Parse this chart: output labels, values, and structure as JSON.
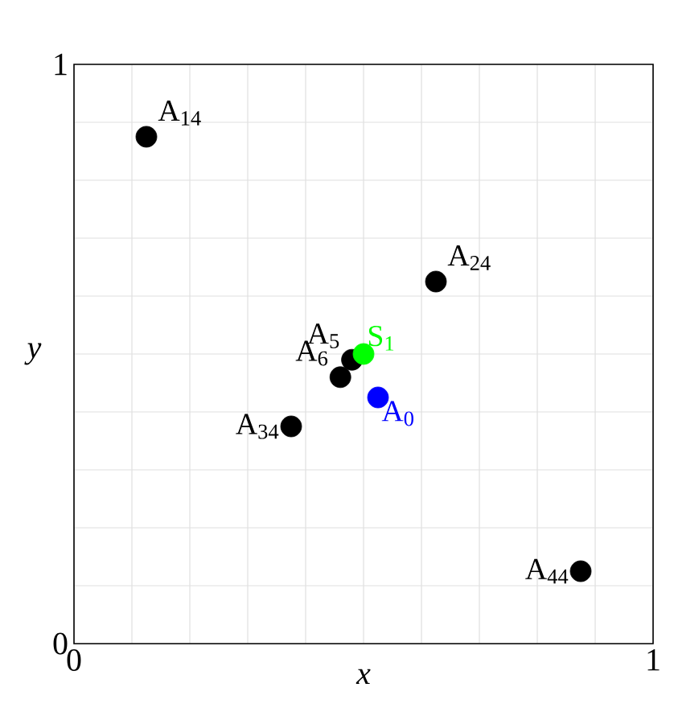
{
  "chart_data": {
    "type": "scatter",
    "xlabel": "x",
    "ylabel": "y",
    "xlim": [
      0,
      1
    ],
    "ylim": [
      0,
      1
    ],
    "xticks": [
      0,
      {
        "value": 0.1,
        "label": null
      },
      {
        "value": 0.2,
        "label": null
      },
      {
        "value": 0.3,
        "label": null
      },
      {
        "value": 0.4,
        "label": null
      },
      {
        "value": 0.5,
        "label": null
      },
      {
        "value": 0.6,
        "label": null
      },
      {
        "value": 0.7,
        "label": null
      },
      {
        "value": 0.8,
        "label": null
      },
      {
        "value": 0.9,
        "label": null
      },
      1
    ],
    "yticks": [
      0,
      {
        "value": 0.1,
        "label": null
      },
      {
        "value": 0.2,
        "label": null
      },
      {
        "value": 0.3,
        "label": null
      },
      {
        "value": 0.4,
        "label": null
      },
      {
        "value": 0.5,
        "label": null
      },
      {
        "value": 0.6,
        "label": null
      },
      {
        "value": 0.7,
        "label": null
      },
      {
        "value": 0.8,
        "label": null
      },
      {
        "value": 0.9,
        "label": null
      },
      1
    ],
    "grid": true,
    "legend": false,
    "marker": "circle",
    "series": [
      {
        "color": "#000000",
        "x": [
          0.125,
          0.625,
          0.48,
          0.46,
          0.375,
          0.875
        ],
        "values": [
          0.875,
          0.625,
          0.49,
          0.46,
          0.375,
          0.125
        ]
      },
      {
        "name": "S$_{1}$",
        "color": "#00ff00",
        "x": [
          0.5
        ],
        "values": [
          0.5
        ]
      },
      {
        "name": "A$_{0}$",
        "color": "#0000ff",
        "x": [
          0.525
        ],
        "values": [
          0.425
        ]
      }
    ],
    "annotations": [
      {
        "text": "A$_{14}$",
        "x": 0.125,
        "y": 0.875
      },
      {
        "text": "A$_{24}$",
        "x": 0.625,
        "y": 0.625
      },
      {
        "text": "A$_{5}$",
        "x": 0.48,
        "y": 0.49
      },
      {
        "text": "A$_{6}$",
        "x": 0.46,
        "y": 0.46
      },
      {
        "text": "A$_{34}$",
        "x": 0.375,
        "y": 0.375
      },
      {
        "text": "A$_{44}$",
        "x": 0.875,
        "y": 0.125
      }
    ]
  }
}
